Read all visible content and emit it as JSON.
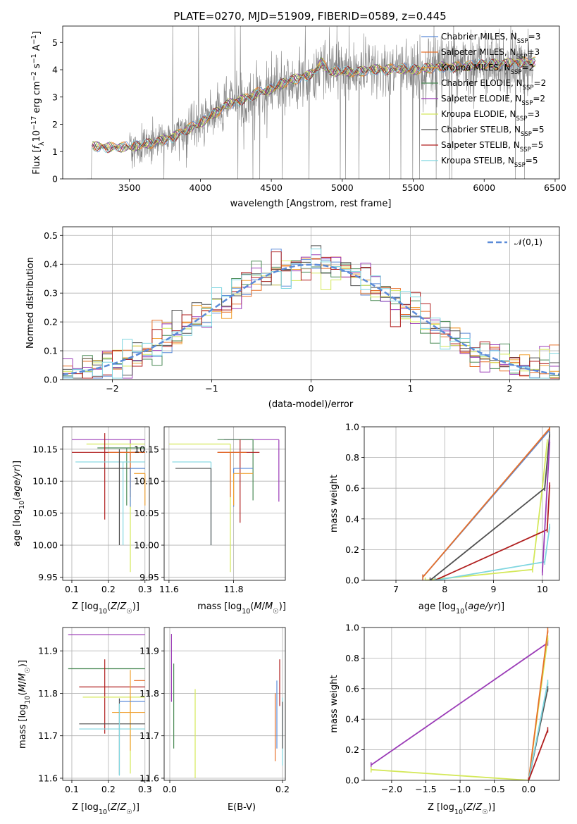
{
  "figure": {
    "title": "PLATE=0270, MJD=51909, FIBERID=0589, z=0.445"
  },
  "chart_data": [
    {
      "id": "spectrum",
      "type": "line",
      "xlabel": "wavelength [Angstrom, rest frame]",
      "ylabel_parts": [
        "Flux [",
        "f",
        "λ",
        "10",
        "−17",
        " erg cm",
        "−2",
        " s",
        "−1",
        " A",
        "−1",
        "]"
      ],
      "xlim": [
        3030,
        6530
      ],
      "ylim": [
        0,
        5.6
      ],
      "xticks": [
        3500,
        4000,
        4500,
        5000,
        5500,
        6000,
        6500
      ],
      "yticks": [
        0,
        1,
        2,
        3,
        4,
        5
      ],
      "grid": false,
      "legend_position": "top-right",
      "series": [
        {
          "name": "Chabrier MILES",
          "nssp": "3",
          "color": "#5b8bd8"
        },
        {
          "name": "Salpeter MILES",
          "nssp": "3",
          "color": "#e7702a"
        },
        {
          "name": "Kroupa MILES",
          "nssp": "2",
          "color": "#f0a030"
        },
        {
          "name": "Chabrier ELODIE",
          "nssp": "2",
          "color": "#4a8a55"
        },
        {
          "name": "Salpeter ELODIE",
          "nssp": "2",
          "color": "#9b3cb7"
        },
        {
          "name": "Kroupa ELODIE",
          "nssp": "3",
          "color": "#d4e85a"
        },
        {
          "name": "Chabrier STELIB",
          "nssp": "5",
          "color": "#505050"
        },
        {
          "name": "Salpeter STELIB",
          "nssp": "5",
          "color": "#b01e1e"
        },
        {
          "name": "Kroupa STELIB",
          "nssp": "5",
          "color": "#7fd6e0"
        }
      ],
      "data_color": "#808080",
      "continuum": {
        "x": [
          3230,
          3350,
          3500,
          3650,
          3800,
          3900,
          4000,
          4100,
          4200,
          4300,
          4400,
          4500,
          4600,
          4700,
          4800,
          4850,
          4900,
          5000,
          5100,
          5200,
          5300,
          5400,
          5500,
          5600,
          5700,
          5800,
          5900,
          6000,
          6100,
          6200,
          6350
        ],
        "y": [
          1.2,
          1.15,
          1.18,
          1.3,
          1.5,
          1.8,
          2.05,
          2.4,
          2.75,
          2.9,
          3.15,
          3.3,
          3.55,
          3.7,
          3.85,
          4.3,
          3.95,
          3.95,
          3.9,
          4.0,
          4.0,
          4.05,
          4.0,
          4.05,
          4.1,
          4.1,
          4.15,
          4.2,
          4.2,
          4.25,
          4.3
        ]
      }
    },
    {
      "id": "residuals",
      "type": "bar",
      "xlabel": "(data-model)/error",
      "ylabel": "Normed distribution",
      "xlim": [
        -2.5,
        2.5
      ],
      "ylim": [
        0,
        0.53
      ],
      "xticks": [
        -2,
        -1,
        0,
        1,
        2
      ],
      "yticks": [
        0.0,
        0.1,
        0.2,
        0.3,
        0.4,
        0.5
      ],
      "grid": true,
      "legend_position": "top-right",
      "reference_label": "𝒩(0,1)",
      "reference_color": "#5b8bd8",
      "bin_width": 0.1
    },
    {
      "id": "age-vs-Z",
      "type": "scatter",
      "xlabel": "Z [log10(Z/Z☉)]",
      "ylabel": "age  [log10(age/yr)]",
      "xlim": [
        0.075,
        0.312
      ],
      "ylim": [
        9.945,
        10.185
      ],
      "xticks": [
        0.1,
        0.2,
        0.3
      ],
      "yticks": [
        9.95,
        10.0,
        10.05,
        10.1,
        10.15
      ],
      "grid": true,
      "points": [
        {
          "x": 0.26,
          "y": 10.165,
          "xerr": [
            0.16,
            0.04
          ],
          "yerr": [
            0.075,
            0.0
          ],
          "series": "Salpeter ELODIE"
        },
        {
          "x": 0.26,
          "y": 10.158,
          "xerr": [
            0.12,
            0.04
          ],
          "yerr": [
            0.2,
            0.0
          ],
          "series": "Kroupa ELODIE"
        },
        {
          "x": 0.25,
          "y": 10.152,
          "xerr": [
            0.08,
            0.05
          ],
          "yerr": [
            0.09,
            0.0
          ],
          "series": "Chabrier ELODIE"
        },
        {
          "x": 0.19,
          "y": 10.145,
          "xerr": [
            0.09,
            0.11
          ],
          "yerr": [
            0.105,
            0.03
          ],
          "series": "Salpeter STELIB"
        },
        {
          "x": 0.26,
          "y": 10.145,
          "xerr": [
            0.06,
            0.04
          ],
          "yerr": [
            0.07,
            0.0
          ],
          "series": "Salpeter MILES"
        },
        {
          "x": 0.24,
          "y": 10.13,
          "xerr": [
            0.13,
            0.06
          ],
          "yerr": [
            0.13,
            0.0
          ],
          "series": "Kroupa STELIB"
        },
        {
          "x": 0.23,
          "y": 10.12,
          "xerr": [
            0.11,
            0.07
          ],
          "yerr": [
            0.12,
            0.03
          ],
          "series": "Chabrier STELIB"
        },
        {
          "x": 0.26,
          "y": 10.12,
          "xerr": [
            0.0,
            0.04
          ],
          "yerr": [
            0.06,
            0.0
          ],
          "series": "Chabrier MILES"
        },
        {
          "x": 0.3,
          "y": 10.112,
          "xerr": [
            0.03,
            0.0
          ],
          "yerr": [
            0.05,
            0.0
          ],
          "series": "Kroupa MILES"
        }
      ]
    },
    {
      "id": "age-vs-mass",
      "type": "scatter",
      "xlabel": "mass [log10(M/M☉)]",
      "ylabel": "",
      "xlim": [
        11.585,
        11.96
      ],
      "ylim": [
        9.945,
        10.185
      ],
      "xticks": [
        11.6,
        11.8
      ],
      "yticks": [
        9.95,
        10.0,
        10.05,
        10.1,
        10.15
      ],
      "grid": true,
      "points": [
        {
          "x": 11.94,
          "y": 10.165,
          "xerr": [
            0.17,
            0.0
          ],
          "yerr": [
            0.097,
            0.0
          ],
          "series": "Salpeter ELODIE"
        },
        {
          "x": 11.79,
          "y": 10.158,
          "xerr": [
            0.19,
            0.0
          ],
          "yerr": [
            0.2,
            0.0
          ],
          "series": "Kroupa ELODIE"
        },
        {
          "x": 11.86,
          "y": 10.165,
          "xerr": [
            0.11,
            0.0
          ],
          "yerr": [
            0.095,
            0.0
          ],
          "series": "Chabrier ELODIE"
        },
        {
          "x": 11.82,
          "y": 10.145,
          "xerr": [
            0.07,
            0.06
          ],
          "yerr": [
            0.11,
            0.02
          ],
          "series": "Salpeter STELIB"
        },
        {
          "x": 11.79,
          "y": 10.145,
          "xerr": [
            0.04,
            0.05
          ],
          "yerr": [
            0.07,
            0.0
          ],
          "series": "Salpeter MILES"
        },
        {
          "x": 11.73,
          "y": 10.13,
          "xerr": [
            0.12,
            0.0
          ],
          "yerr": [
            0.13,
            0.0
          ],
          "series": "Kroupa STELIB"
        },
        {
          "x": 11.73,
          "y": 10.12,
          "xerr": [
            0.11,
            0.0
          ],
          "yerr": [
            0.12,
            0.0
          ],
          "series": "Chabrier STELIB"
        },
        {
          "x": 11.8,
          "y": 10.12,
          "xerr": [
            0.0,
            0.06
          ],
          "yerr": [
            0.06,
            0.0
          ],
          "series": "Chabrier MILES"
        },
        {
          "x": 11.8,
          "y": 10.112,
          "xerr": [
            0.0,
            0.06
          ],
          "yerr": [
            0.05,
            0.0
          ],
          "series": "Kroupa MILES"
        }
      ]
    },
    {
      "id": "weight-vs-age",
      "type": "line",
      "xlabel": "age  [log10(age/yr)]",
      "ylabel": "mass weight",
      "xlim": [
        6.35,
        10.35
      ],
      "ylim": [
        0,
        1.0
      ],
      "xticks": [
        7,
        8,
        9,
        10
      ],
      "yticks": [
        0.0,
        0.2,
        0.4,
        0.6,
        0.8,
        1.0
      ],
      "grid": true,
      "series": [
        {
          "name": "Chabrier MILES",
          "x": [
            7.55,
            10.15
          ],
          "y": [
            0.02,
            0.98
          ]
        },
        {
          "name": "Salpeter MILES",
          "x": [
            7.55,
            10.15
          ],
          "y": [
            0.02,
            0.99
          ]
        },
        {
          "name": "Kroupa ELODIE",
          "x": [
            7.6,
            9.8,
            10.0,
            10.1
          ],
          "y": [
            0.0,
            0.07,
            0.6,
            0.9
          ]
        },
        {
          "name": "Chabrier STELIB",
          "x": [
            7.7,
            10.05,
            10.15
          ],
          "y": [
            0.0,
            0.6,
            0.95
          ]
        },
        {
          "name": "Salpeter STELIB",
          "x": [
            7.8,
            10.1,
            10.15
          ],
          "y": [
            0.0,
            0.33,
            0.62
          ]
        },
        {
          "name": "Kroupa STELIB",
          "x": [
            7.8,
            10.05,
            10.15
          ],
          "y": [
            0.0,
            0.12,
            0.35
          ]
        },
        {
          "name": "Salpeter ELODIE",
          "x": [
            10.0,
            10.15
          ],
          "y": [
            0.05,
            0.9
          ]
        }
      ]
    },
    {
      "id": "mass-vs-Z",
      "type": "scatter",
      "xlabel": "Z [log10(Z/Z☉)]",
      "ylabel": "mass [log10(M/M☉)]",
      "xlim": [
        0.075,
        0.312
      ],
      "ylim": [
        11.595,
        11.955
      ],
      "xticks": [
        0.1,
        0.2,
        0.3
      ],
      "yticks": [
        11.6,
        11.7,
        11.8,
        11.9
      ],
      "grid": true,
      "points": [
        {
          "x": 0.26,
          "y": 11.938,
          "xerr": [
            0.17,
            0.04
          ],
          "yerr": [
            0.0,
            0.0
          ],
          "series": "Salpeter ELODIE"
        },
        {
          "x": 0.26,
          "y": 11.858,
          "xerr": [
            0.17,
            0.04
          ],
          "yerr": [
            0.0,
            0.0
          ],
          "series": "Chabrier ELODIE"
        },
        {
          "x": 0.19,
          "y": 11.815,
          "xerr": [
            0.07,
            0.11
          ],
          "yerr": [
            0.11,
            0.065
          ],
          "series": "Salpeter STELIB"
        },
        {
          "x": 0.26,
          "y": 11.791,
          "xerr": [
            0.13,
            0.04
          ],
          "yerr": [
            0.18,
            0.0
          ],
          "series": "Kroupa ELODIE"
        },
        {
          "x": 0.26,
          "y": 11.755,
          "xerr": [
            0.05,
            0.04
          ],
          "yerr": [
            0.09,
            0.1
          ],
          "series": "Kroupa MILES"
        },
        {
          "x": 0.23,
          "y": 11.728,
          "xerr": [
            0.11,
            0.07
          ],
          "yerr": [
            0.12,
            0.06
          ],
          "series": "Chabrier STELIB"
        },
        {
          "x": 0.23,
          "y": 11.716,
          "xerr": [
            0.11,
            0.07
          ],
          "yerr": [
            0.11,
            0.06
          ],
          "series": "Kroupa STELIB"
        },
        {
          "x": 0.26,
          "y": 11.781,
          "xerr": [
            0.03,
            0.04
          ],
          "yerr": [
            0.0,
            0.0
          ],
          "series": "Chabrier MILES"
        },
        {
          "x": 0.3,
          "y": 11.83,
          "xerr": [
            0.03,
            0.0
          ],
          "yerr": [
            0.0,
            0.0
          ],
          "series": "Salpeter MILES"
        }
      ]
    },
    {
      "id": "mass-vs-EBV",
      "type": "scatter",
      "xlabel": "E(B-V)",
      "ylabel": "",
      "xlim": [
        -0.01,
        0.205
      ],
      "ylim": [
        11.595,
        11.955
      ],
      "xticks": [
        0.0,
        0.2
      ],
      "yticks": [
        11.6,
        11.7,
        11.8,
        11.9
      ],
      "grid": true,
      "points": [
        {
          "x": 0.003,
          "y": 11.9,
          "yerr": [
            0.12,
            0.04
          ],
          "series": "Salpeter ELODIE"
        },
        {
          "x": 0.007,
          "y": 11.86,
          "yerr": [
            0.19,
            0.01
          ],
          "series": "Chabrier ELODIE"
        },
        {
          "x": 0.045,
          "y": 11.79,
          "yerr": [
            0.19,
            0.02
          ],
          "series": "Kroupa ELODIE"
        },
        {
          "x": 0.187,
          "y": 11.76,
          "yerr": [
            0.12,
            0.04
          ],
          "series": "Salpeter MILES"
        },
        {
          "x": 0.19,
          "y": 11.77,
          "yerr": [
            0.1,
            0.06
          ],
          "series": "Chabrier MILES"
        },
        {
          "x": 0.195,
          "y": 11.82,
          "yerr": [
            0.05,
            0.06
          ],
          "series": "Salpeter STELIB"
        },
        {
          "x": 0.2,
          "y": 11.73,
          "yerr": [
            0.1,
            0.06
          ],
          "series": "Kroupa STELIB"
        },
        {
          "x": 0.2,
          "y": 11.7,
          "yerr": [
            0.03,
            0.08
          ],
          "series": "Chabrier STELIB"
        }
      ]
    },
    {
      "id": "weight-vs-Z",
      "type": "line",
      "xlabel": "Z [log10(Z/Z☉)]",
      "ylabel": "mass weight",
      "xlim": [
        -2.4,
        0.45
      ],
      "ylim": [
        0,
        1.0
      ],
      "xticks": [
        -2.0,
        -1.5,
        -1.0,
        -0.5,
        0.0
      ],
      "yticks": [
        0.0,
        0.2,
        0.4,
        0.6,
        0.8,
        1.0
      ],
      "grid": true,
      "series": [
        {
          "name": "Salpeter ELODIE",
          "x": [
            -2.3,
            0.28
          ],
          "y": [
            0.1,
            0.9
          ]
        },
        {
          "name": "Kroupa ELODIE",
          "x": [
            -2.3,
            0.0,
            0.28
          ],
          "y": [
            0.07,
            0.0,
            0.93
          ]
        },
        {
          "name": "Salpeter MILES",
          "x": [
            0.0,
            0.28
          ],
          "y": [
            0.0,
            0.98
          ]
        },
        {
          "name": "Chabrier STELIB",
          "x": [
            0.0,
            0.28
          ],
          "y": [
            0.0,
            0.6
          ]
        },
        {
          "name": "Kroupa STELIB",
          "x": [
            0.0,
            0.28
          ],
          "y": [
            0.0,
            0.64
          ]
        },
        {
          "name": "Salpeter STELIB",
          "x": [
            0.0,
            0.28
          ],
          "y": [
            0.0,
            0.33
          ]
        }
      ]
    }
  ]
}
